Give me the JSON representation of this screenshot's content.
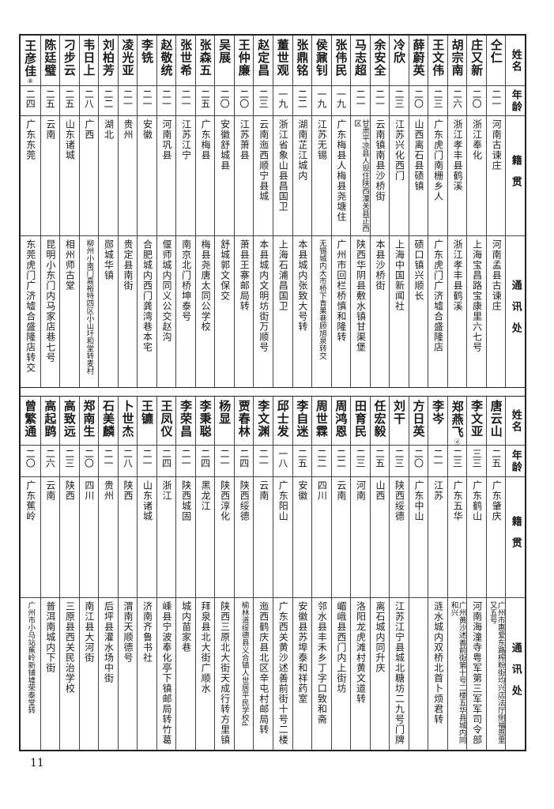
{
  "headers": {
    "name": "姓名",
    "age": "年龄",
    "native_place": "籍贯",
    "address": "通讯处"
  },
  "page_number": "11",
  "tables": [
    {
      "rows": [
        {
          "name": "仝仁",
          "age": "二一",
          "native_place": "河南古谏庄",
          "address": "河南孟县古谏庄"
        },
        {
          "name": "庄又新",
          "age": "二〇",
          "native_place": "浙江奉化",
          "address": "上海宝昌路宝康里六七号"
        },
        {
          "name": "胡宗南",
          "age": "二六",
          "native_place": "浙江孝丰县鹤溪",
          "address": "浙江孝丰县鹤溪"
        },
        {
          "name": "王文伟",
          "age": "二三",
          "native_place": "广东虎门南栅乡人",
          "address": "广东虎门广济墟合盛隆店"
        },
        {
          "name": "薛蔚英",
          "age": "二〇",
          "native_place": "山西离石县碛镇",
          "address": "碛口镇兴顺长"
        },
        {
          "name": "冷欣",
          "age": "二三",
          "native_place": "江苏兴化西门",
          "address": "上海中国新闻社"
        },
        {
          "name": "余安全",
          "age": "二一",
          "native_place": "云南镇南县沙桥街",
          "address": "本县沙桥街"
        },
        {
          "name": "马志超",
          "age": "二一",
          "native_place": "甘肃平凉县人现住陕西潼关县正西区",
          "address": "陕西华阴县敷水镇甘渠堡"
        },
        {
          "name": "张伟民",
          "age": "一九",
          "native_place": "广东梅县人梅县尧塘住",
          "address": "广州市回栏桥慎和隆转"
        },
        {
          "name": "侯鼐钊",
          "age": "一九",
          "native_place": "江苏无锡",
          "address": "无锡城内大市桥下青果巷顾旭泉转交"
        },
        {
          "name": "张鼎铭",
          "age": "二二",
          "native_place": "湖南芷江城内",
          "address": "本县城内张致大号转"
        },
        {
          "name": "董世观",
          "age": "一九",
          "native_place": "浙江省象山县昌国卫",
          "address": "上海石浦昌国卫"
        },
        {
          "name": "赵定昌",
          "age": "二三",
          "native_place": "云南迤西顺宁县城",
          "address": "本县城内文明坊街万顺号"
        },
        {
          "name": "王仲廉",
          "age": "二〇",
          "native_place": "江苏萧县",
          "address": "萧县王寨邮局转"
        },
        {
          "name": "吴展",
          "age": "二〇",
          "native_place": "安徽舒城县",
          "address": "舒城郭文保交"
        },
        {
          "name": "张森五",
          "age": "二五",
          "native_place": "广东梅县",
          "address": "梅县尧唐太同公学校"
        },
        {
          "name": "张世希",
          "age": "二一",
          "native_place": "江苏江宁",
          "address": "南京北门桥坤泰号"
        },
        {
          "name": "赵敬统",
          "age": "二一",
          "native_place": "河南巩县",
          "address": "偃师城内同义公交赵沟"
        },
        {
          "name": "李铣",
          "age": "二一",
          "native_place": "安徽",
          "address": "合肥城内西门龚湾巷本宅"
        },
        {
          "name": "凌光亚",
          "age": "二一",
          "native_place": "贵州",
          "address": "贵定县南街"
        },
        {
          "name": "刘柏芳",
          "age": "二二",
          "native_place": "湖北",
          "address": "郧城华镇"
        },
        {
          "name": "韦日上",
          "age": "二八",
          "native_place": "广西",
          "address": "柳州小南门嘉裕特四区小山圩和堂转麦村"
        },
        {
          "name": "刁步云",
          "age": "二五",
          "native_place": "山东诸城",
          "address": "相州师古堂"
        },
        {
          "name": "陈廷璧",
          "age": "二五",
          "native_place": "云南",
          "address": "昆明小东门内马家店巷七号"
        },
        {
          "name": "王彦佳",
          "note": "⑧",
          "age": "二四",
          "native_place": "广东东莞",
          "address": "东莞虎门广济墟合盛隆店转交"
        }
      ]
    },
    {
      "rows": [
        {
          "name": "唐云山",
          "age": "二五",
          "native_place": "广东肇庆",
          "address": "广州市惠爱东路榨粉街均兴店法厅侧福恩里又五号"
        },
        {
          "name": "李文亚",
          "age": "三三",
          "native_place": "广东鹤山",
          "address": "河南海潼寺粤军第三军军司令部"
        },
        {
          "name": "郑燕飞",
          "note": "ⓓ",
          "age": "二三",
          "native_place": "广东五华",
          "address": "广州黄沙述善前街第十号二楼五华县城内同和兴"
        },
        {
          "name": "李岑",
          "age": "二一",
          "native_place": "江苏",
          "address": "涟水城内双桥北首卜烦君转"
        },
        {
          "name": "方日英",
          "age": "二〇",
          "native_place": "广东中山",
          "address": ""
        },
        {
          "name": "刘干",
          "age": "二三",
          "native_place": "陕西绥德",
          "address": "江苏江宁县城北糖坊二九号门牌"
        },
        {
          "name": "任宏毅",
          "age": "二五",
          "native_place": "山西",
          "address": "离石城内同升庆"
        },
        {
          "name": "田育民",
          "age": "二三",
          "native_place": "河南",
          "address": "洛阳龙虎滩村黄文道转"
        },
        {
          "name": "周鸿恩",
          "age": "二二",
          "native_place": "云南",
          "address": "嵋峨县西门内上街坊"
        },
        {
          "name": "周世霖",
          "age": "二二",
          "native_place": "四川",
          "address": "邻水县丰禾乡丁字口致和斋"
        },
        {
          "name": "李自迷",
          "age": "二五",
          "native_place": "安徽",
          "address": "安徽县苏埠泰和祥药室"
        },
        {
          "name": "邱士发",
          "age": "一八",
          "native_place": "广东阳山",
          "address": "广东西关黄沙述善前街十号二楼"
        },
        {
          "name": "李文渊",
          "age": "二一",
          "native_place": "云南",
          "address": "迤西鹤庆县北区辛屯村邮局转"
        },
        {
          "name": "贾春林",
          "age": "二四",
          "native_place": "陕西绥德",
          "address": "榆林道绥德县义合镇人世居平民学校d"
        },
        {
          "name": "杨显",
          "age": "二一",
          "native_place": "陕西淳化",
          "address": "陕西三原北大街天成行转方里镇"
        },
        {
          "name": "李秉聪",
          "age": "二四",
          "native_place": "黑龙江",
          "address": "拜泉县北大街广顺水"
        },
        {
          "name": "李荣昌",
          "age": "二一",
          "native_place": "陕西城固",
          "address": "城内苗家巷"
        },
        {
          "name": "王凤仪",
          "age": "二四",
          "native_place": "浙江",
          "address": "嵊县宁波奉化亭下镇邮局转竹葛"
        },
        {
          "name": "王镳",
          "age": "二一",
          "native_place": "山东诸城",
          "address": "济南齐鲁书社"
        },
        {
          "name": "卜世杰",
          "age": "二八",
          "native_place": "陕西",
          "address": "渭南天顺德号"
        },
        {
          "name": "石美麟",
          "age": "二一",
          "native_place": "贵州",
          "address": "后坪县灌水场中街"
        },
        {
          "name": "郑南生",
          "age": "二〇",
          "native_place": "四川",
          "address": "南江县大河街"
        },
        {
          "name": "高致远",
          "age": "二三",
          "native_place": "陕西",
          "address": "三原县西关民治学校"
        },
        {
          "name": "高起鹍",
          "age": "二六",
          "native_place": "云南",
          "address": "普洱南城内下街"
        },
        {
          "name": "曾繁通",
          "age": "二〇",
          "native_place": "广东蕉岭",
          "address": "广州市小马站蕉岭新铺墟荣泰堂转"
        }
      ]
    }
  ]
}
